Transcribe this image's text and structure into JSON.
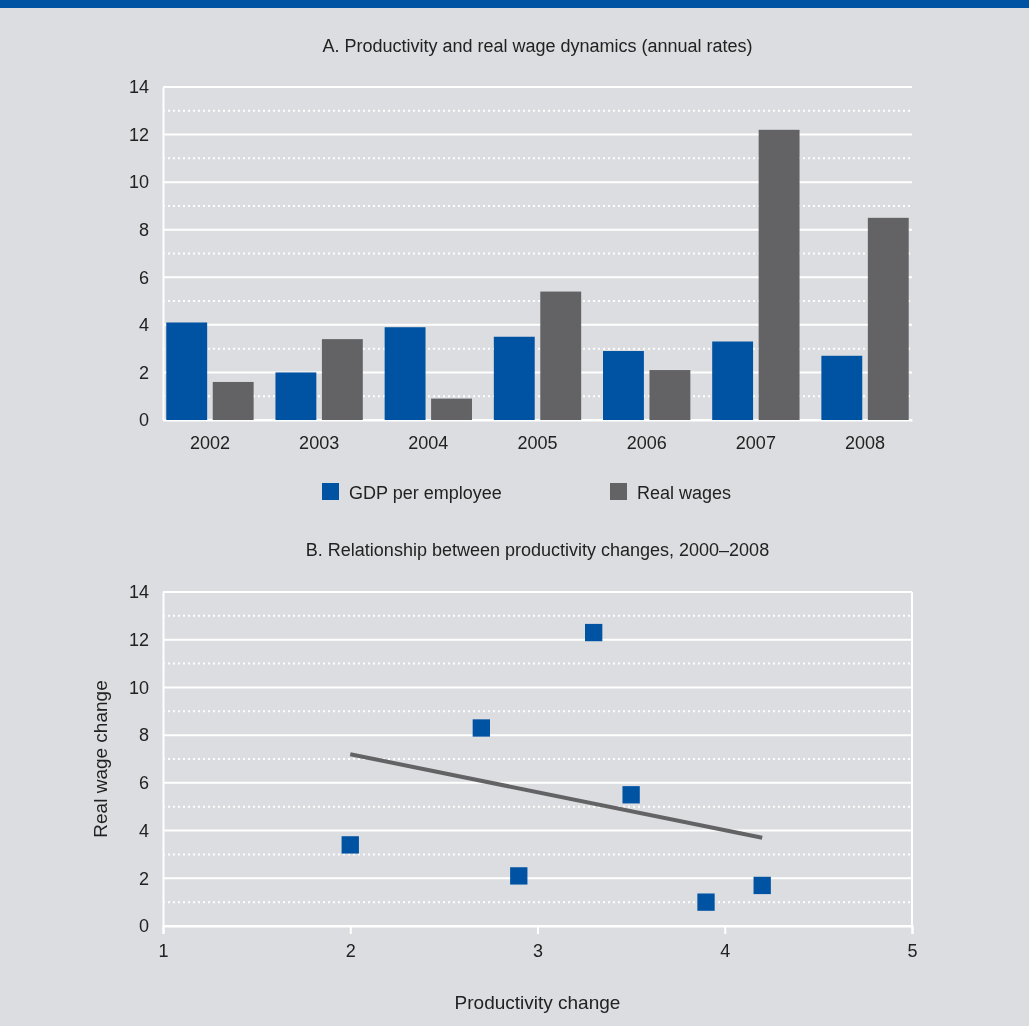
{
  "chart_data": [
    {
      "type": "bar",
      "title": "A. Productivity and real wage dynamics (annual rates)",
      "categories": [
        "2002",
        "2003",
        "2004",
        "2005",
        "2006",
        "2007",
        "2008"
      ],
      "series": [
        {
          "name": "GDP per employee",
          "color": "#0052a3",
          "values": [
            4.1,
            2.0,
            3.9,
            3.5,
            2.9,
            3.3,
            2.7
          ]
        },
        {
          "name": "Real wages",
          "color": "#636366",
          "values": [
            1.6,
            3.4,
            0.9,
            5.4,
            2.1,
            12.2,
            8.5
          ]
        }
      ],
      "ylim": [
        0,
        14
      ],
      "yticks": [
        0,
        2,
        4,
        6,
        8,
        10,
        12,
        14
      ],
      "grid": "y",
      "legend": "bottom"
    },
    {
      "type": "scatter",
      "title": "B. Relationship between productivity changes, 2000–2008",
      "xlabel": "Productivity change",
      "ylabel": "Real wage change",
      "series": [
        {
          "type": "scatter",
          "marker": "square",
          "color": "#0052a3",
          "x": [
            2.0,
            2.7,
            2.9,
            3.3,
            3.5,
            3.9,
            4.2
          ],
          "values": [
            3.4,
            8.3,
            2.1,
            12.3,
            5.5,
            1.0,
            1.7
          ]
        },
        {
          "type": "line",
          "color": "#636366",
          "x": [
            2.0,
            4.2
          ],
          "values": [
            7.2,
            3.7
          ]
        }
      ],
      "xlim": [
        1,
        5
      ],
      "xticks": [
        1,
        2,
        3,
        4,
        5
      ],
      "ylim": [
        0,
        14
      ],
      "yticks": [
        0,
        2,
        4,
        6,
        8,
        10,
        12,
        14
      ],
      "grid": "y"
    }
  ]
}
